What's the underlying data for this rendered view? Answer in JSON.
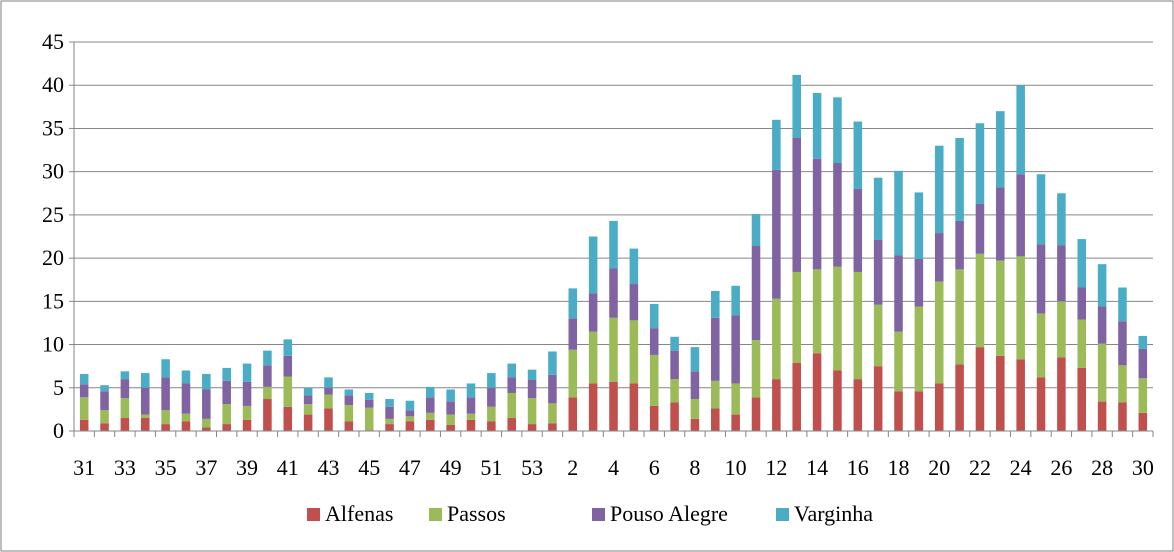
{
  "chart_data": {
    "type": "bar",
    "stacked": true,
    "categories": [
      "31",
      "32",
      "33",
      "34",
      "35",
      "36",
      "37",
      "38",
      "39",
      "40",
      "41",
      "42",
      "43",
      "44",
      "45",
      "46",
      "47",
      "48",
      "49",
      "50",
      "51",
      "52",
      "53",
      "1",
      "2",
      "3",
      "4",
      "5",
      "6",
      "7",
      "8",
      "9",
      "10",
      "11",
      "12",
      "13",
      "14",
      "15",
      "16",
      "17",
      "18",
      "19",
      "20",
      "21",
      "22",
      "23",
      "24",
      "25",
      "26",
      "27",
      "28",
      "29",
      "30"
    ],
    "x_tick_labels": [
      "31",
      "33",
      "35",
      "37",
      "39",
      "41",
      "43",
      "45",
      "47",
      "49",
      "51",
      "53",
      "2",
      "4",
      "6",
      "8",
      "10",
      "12",
      "14",
      "16",
      "18",
      "20",
      "22",
      "24",
      "26",
      "28",
      "30"
    ],
    "y_tick_labels": [
      "0",
      "5",
      "10",
      "15",
      "20",
      "25",
      "30",
      "35",
      "40",
      "45"
    ],
    "ylim": [
      0,
      45
    ],
    "y_tick_step": 5,
    "grid": "horizontal",
    "legend_position": "bottom",
    "series": [
      {
        "name": "Alfenas",
        "color": "#c0504d",
        "values": [
          1.3,
          0.9,
          1.5,
          1.5,
          0.8,
          1.1,
          0.4,
          0.8,
          1.3,
          3.7,
          2.8,
          1.9,
          2.6,
          1.1,
          0.1,
          0.8,
          1.1,
          1.3,
          0.7,
          1.3,
          1.1,
          1.5,
          0.8,
          0.9,
          3.9,
          5.5,
          5.7,
          5.5,
          2.9,
          3.3,
          1.4,
          2.6,
          1.9,
          3.9,
          6.0,
          7.9,
          9.0,
          7.0,
          6.0,
          7.5,
          4.6,
          4.6,
          5.5,
          7.7,
          9.7,
          8.7,
          8.3,
          6.2,
          8.5,
          7.3,
          3.4,
          3.3,
          2.1
        ]
      },
      {
        "name": "Passos",
        "color": "#9bbb59",
        "values": [
          2.6,
          1.5,
          2.3,
          0.4,
          1.6,
          0.9,
          1.0,
          2.3,
          1.6,
          1.4,
          3.5,
          1.2,
          1.6,
          1.9,
          2.6,
          0.6,
          0.6,
          0.8,
          1.2,
          0.7,
          1.7,
          2.9,
          3.0,
          2.3,
          5.5,
          6.0,
          7.4,
          7.3,
          5.9,
          2.7,
          2.3,
          3.2,
          3.6,
          6.6,
          9.3,
          10.5,
          9.7,
          12.0,
          12.4,
          7.1,
          6.9,
          9.8,
          11.8,
          11.0,
          10.8,
          11.0,
          11.9,
          7.4,
          6.5,
          5.6,
          6.7,
          4.3,
          4.0
        ]
      },
      {
        "name": "Pouso Alegre",
        "color": "#8064a2",
        "values": [
          1.5,
          2.2,
          2.2,
          3.1,
          3.8,
          3.5,
          3.4,
          2.7,
          2.8,
          2.5,
          2.4,
          1.0,
          0.8,
          1.1,
          0.9,
          1.4,
          0.7,
          1.8,
          1.5,
          1.9,
          2.2,
          1.8,
          2.1,
          3.3,
          3.6,
          4.4,
          5.7,
          4.2,
          3.1,
          3.3,
          3.2,
          7.3,
          7.9,
          10.9,
          14.9,
          15.5,
          12.8,
          12.0,
          9.6,
          7.5,
          8.8,
          5.5,
          5.6,
          5.6,
          5.8,
          8.5,
          9.5,
          8.0,
          6.5,
          3.7,
          4.3,
          5.1,
          3.4
        ]
      },
      {
        "name": "Varginha",
        "color": "#4bacc6",
        "values": [
          1.2,
          0.7,
          0.9,
          1.7,
          2.1,
          1.5,
          1.8,
          1.5,
          2.1,
          1.7,
          1.9,
          0.9,
          1.2,
          0.7,
          0.8,
          0.9,
          1.1,
          1.2,
          1.4,
          1.6,
          1.7,
          1.6,
          1.2,
          2.7,
          3.5,
          6.6,
          5.5,
          4.1,
          2.8,
          1.6,
          2.8,
          3.1,
          3.4,
          3.7,
          5.8,
          7.3,
          7.6,
          7.6,
          7.8,
          7.2,
          9.8,
          7.7,
          10.1,
          9.6,
          9.3,
          8.8,
          10.3,
          8.1,
          6.0,
          5.6,
          4.9,
          3.9,
          1.5
        ]
      }
    ]
  }
}
